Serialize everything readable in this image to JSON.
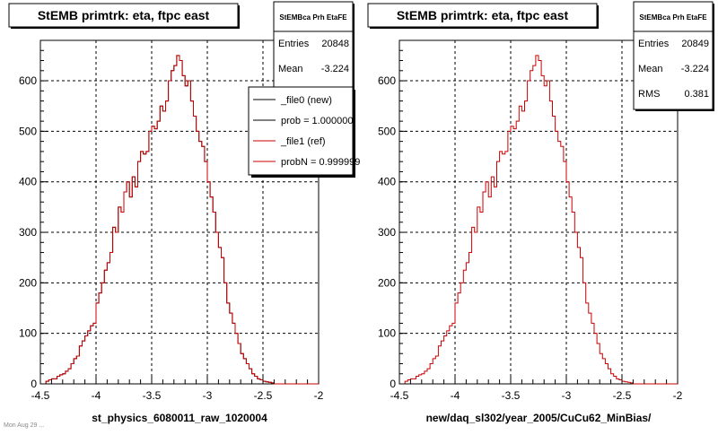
{
  "chart_data": [
    {
      "type": "histogram",
      "title": "StEMB primtrk: eta, ftpc east",
      "xlabel": "st_physics_6080011_raw_1020004",
      "xlim": [
        -4.5,
        -2
      ],
      "ylim": [
        0,
        680
      ],
      "xticks": [
        "-4.5",
        "-4",
        "-3.5",
        "-3",
        "-2.5",
        "-2"
      ],
      "yticks": [
        "0",
        "100",
        "200",
        "300",
        "400",
        "500",
        "600"
      ],
      "grid": true,
      "bin_width": 0.025,
      "x_start": -4.5,
      "values": [
        0,
        0,
        5,
        8,
        10,
        10,
        15,
        18,
        20,
        25,
        30,
        40,
        50,
        55,
        75,
        85,
        95,
        105,
        115,
        120,
        160,
        180,
        200,
        225,
        240,
        260,
        310,
        300,
        350,
        340,
        380,
        400,
        370,
        410,
        390,
        440,
        460,
        455,
        460,
        500,
        510,
        505,
        520,
        550,
        540,
        560,
        600,
        620,
        630,
        650,
        640,
        610,
        590,
        600,
        560,
        530,
        500,
        480,
        470,
        440,
        400,
        370,
        340,
        300,
        270,
        250,
        200,
        160,
        140,
        120,
        100,
        80,
        60,
        50,
        40,
        30,
        20,
        15,
        10,
        8,
        5,
        4,
        3,
        2,
        0,
        0,
        0,
        0,
        0,
        0,
        0,
        0,
        0,
        0,
        0,
        0,
        0,
        0,
        0,
        0
      ],
      "series": [
        {
          "name": "_file0 (new)",
          "color": "#000000"
        },
        {
          "name": "_file1 (ref)",
          "color": "#cc0000"
        }
      ],
      "stats": {
        "header": "StEMBca Prh EtaFE",
        "rows": [
          {
            "label": "Entries",
            "value": "20848"
          },
          {
            "label": "Mean",
            "value": "-3.224"
          }
        ]
      },
      "legend": {
        "placement": "top-right",
        "entries": [
          {
            "label": "_file0 (new)",
            "color": "#000000"
          },
          {
            "label": "prob = 1.000000",
            "color": "#000000"
          },
          {
            "label": "_file1 (ref)",
            "color": "#cc0000"
          },
          {
            "label": "probN = 0.999999",
            "color": "#cc0000"
          }
        ]
      }
    },
    {
      "type": "histogram",
      "title": "StEMB primtrk: eta, ftpc east",
      "xlabel": "new/daq_sl302/year_2005/CuCu62_MinBias/",
      "xlim": [
        -4.5,
        -2
      ],
      "ylim": [
        0,
        680
      ],
      "xticks": [
        "-4.5",
        "-4",
        "-3.5",
        "-3",
        "-2.5",
        "-2"
      ],
      "yticks": [
        "0",
        "100",
        "200",
        "300",
        "400",
        "500",
        "600"
      ],
      "grid": true,
      "bin_width": 0.025,
      "x_start": -4.5,
      "values": [
        0,
        0,
        5,
        8,
        10,
        10,
        15,
        18,
        20,
        25,
        30,
        40,
        50,
        55,
        75,
        85,
        95,
        105,
        115,
        120,
        160,
        180,
        200,
        225,
        240,
        260,
        310,
        300,
        350,
        340,
        380,
        400,
        370,
        410,
        390,
        440,
        460,
        455,
        460,
        500,
        510,
        505,
        520,
        550,
        540,
        560,
        600,
        620,
        630,
        650,
        640,
        610,
        590,
        600,
        560,
        530,
        500,
        480,
        470,
        440,
        400,
        370,
        340,
        300,
        270,
        250,
        200,
        160,
        140,
        120,
        100,
        80,
        60,
        50,
        40,
        30,
        20,
        15,
        10,
        8,
        5,
        4,
        3,
        2,
        0,
        0,
        0,
        0,
        0,
        0,
        0,
        0,
        0,
        0,
        0,
        0,
        0,
        0,
        0,
        0
      ],
      "series": [
        {
          "name": "",
          "color": "#cc0000"
        }
      ],
      "stats": {
        "header": "StEMBca Prh EtaFE",
        "rows": [
          {
            "label": "Entries",
            "value": "20849"
          },
          {
            "label": "Mean",
            "value": "-3.224"
          },
          {
            "label": "RMS",
            "value": "0.381"
          }
        ]
      }
    }
  ],
  "footer": "Mon Aug 29 ..."
}
